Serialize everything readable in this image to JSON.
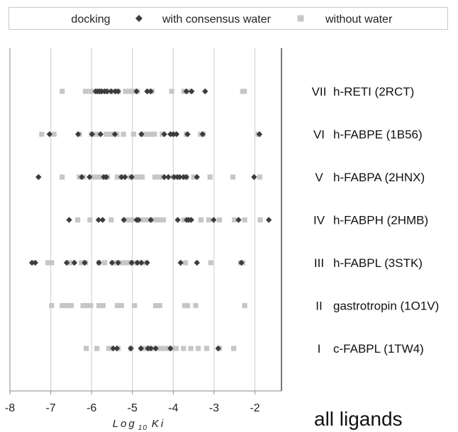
{
  "chart_data": {
    "type": "scatter",
    "legend_title": "docking",
    "legend": "top",
    "grid": true,
    "xlabel": {
      "text": "Log",
      "subscript": "10",
      "suffix": "Ki"
    },
    "xlim": [
      -8,
      -1.35
    ],
    "xticks": [
      -8,
      -7,
      -6,
      -5,
      -4,
      -3,
      -2
    ],
    "annotation": "all ligands",
    "categories": [
      {
        "numeral": "VII",
        "label": "h-RETI (2RCT)"
      },
      {
        "numeral": "VI",
        "label": "h-FABPE (1B56)"
      },
      {
        "numeral": "V",
        "label": "h-FABPA (2HNX)"
      },
      {
        "numeral": "IV",
        "label": "h-FABPH (2HMB)"
      },
      {
        "numeral": "III",
        "label": "h-FABPL (3STK)"
      },
      {
        "numeral": "II",
        "label": "gastrotropin (1O1V)"
      },
      {
        "numeral": "I",
        "label": "c-FABPL (1TW4)"
      }
    ],
    "series": [
      {
        "name": "with consensus water",
        "marker": "diamond",
        "color": "#3c3c3c",
        "values": [
          [
            -5.9,
            -5.85,
            -5.8,
            -5.75,
            -5.68,
            -5.62,
            -5.52,
            -5.42,
            -5.35,
            -4.9,
            -4.64,
            -4.55,
            -3.68,
            -3.55,
            -3.22
          ],
          [
            -7.03,
            -6.33,
            -5.99,
            -5.78,
            -5.43,
            -4.78,
            -4.22,
            -4.07,
            -4.0,
            -3.92,
            -3.65,
            -3.28,
            -1.89
          ],
          [
            -7.3,
            -6.24,
            -6.05,
            -5.7,
            -5.64,
            -5.27,
            -5.18,
            -5.02,
            -4.22,
            -4.12,
            -3.98,
            -3.9,
            -3.84,
            -3.75,
            -3.68,
            -3.42,
            -2.02
          ],
          [
            -6.55,
            -5.83,
            -5.73,
            -5.21,
            -4.9,
            -4.85,
            -4.55,
            -3.89,
            -3.67,
            -3.62,
            -3.56,
            -3.01,
            -2.4,
            -1.66
          ],
          [
            -7.46,
            -7.38,
            -6.61,
            -6.42,
            -6.17,
            -5.82,
            -5.5,
            -5.35,
            -5.02,
            -4.88,
            -4.78,
            -4.64,
            -3.82,
            -3.42,
            -2.33
          ],
          [],
          [
            -5.47,
            -5.38,
            -5.04,
            -4.79,
            -4.62,
            -4.55,
            -4.43,
            -4.07,
            -2.9
          ]
        ]
      },
      {
        "name": "without water",
        "marker": "square",
        "color": "#c6c6c6",
        "values": [
          [
            -6.72,
            -6.15,
            -6.02,
            -5.92,
            -5.82,
            -5.72,
            -5.62,
            -5.5,
            -5.42,
            -5.35,
            -5.17,
            -5.07,
            -4.98,
            -4.88,
            -4.58,
            -4.52,
            -4.04,
            -3.74,
            -3.64,
            -2.3,
            -2.26
          ],
          [
            -7.22,
            -6.92,
            -6.3,
            -6.0,
            -5.87,
            -5.64,
            -5.52,
            -5.38,
            -5.22,
            -4.97,
            -4.76,
            -4.68,
            -4.6,
            -4.53,
            -4.46,
            -4.27,
            -3.98,
            -3.68,
            -3.33,
            -3.27,
            -1.92
          ],
          [
            -6.72,
            -6.3,
            -6.2,
            -5.97,
            -5.85,
            -5.76,
            -5.61,
            -5.37,
            -5.24,
            -5.05,
            -4.93,
            -4.85,
            -4.76,
            -4.45,
            -4.34,
            -4.26,
            -4.0,
            -3.68,
            -3.5,
            -3.1,
            -2.54,
            -1.88
          ],
          [
            -6.34,
            -6.04,
            -5.52,
            -5.18,
            -5.11,
            -5.02,
            -4.83,
            -4.72,
            -4.6,
            -4.48,
            -4.36,
            -4.24,
            -3.74,
            -3.32,
            -3.13,
            -2.87,
            -2.5,
            -2.25,
            -1.87
          ],
          [
            -7.07,
            -6.98,
            -6.56,
            -6.49,
            -6.25,
            -6.15,
            -5.82,
            -5.68,
            -5.43,
            -5.26,
            -5.14,
            -5.02,
            -4.93,
            -4.81,
            -4.67,
            -3.7,
            -3.08,
            -2.35,
            -2.3
          ],
          [
            -6.98,
            -6.72,
            -6.65,
            -6.58,
            -6.5,
            -6.21,
            -6.13,
            -6.02,
            -5.82,
            -5.72,
            -5.37,
            -5.27,
            -4.95,
            -4.43,
            -4.33,
            -3.72,
            -3.65,
            -3.45,
            -2.25
          ],
          [
            -6.13,
            -5.87,
            -5.58,
            -5.52,
            -5.35,
            -5.04,
            -4.79,
            -4.7,
            -4.62,
            -4.46,
            -4.34,
            -4.29,
            -4.2,
            -4.12,
            -4.03,
            -3.93,
            -3.75,
            -3.57,
            -3.39,
            -3.18,
            -2.87,
            -2.52
          ]
        ]
      }
    ]
  }
}
